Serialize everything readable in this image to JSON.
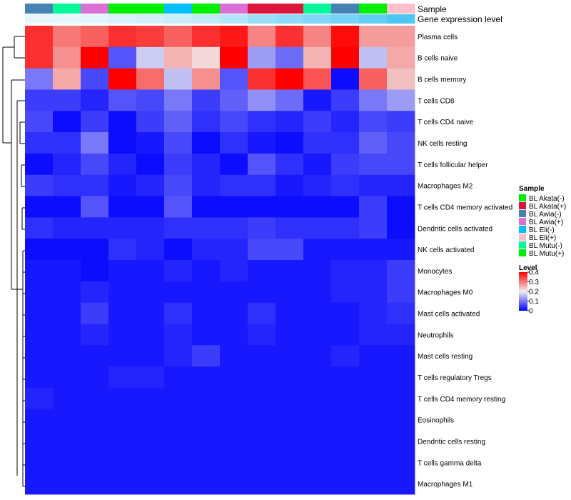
{
  "chart_data": {
    "type": "heatmap",
    "title": "",
    "annotation_labels": {
      "sample": "Sample",
      "expression": "Gene expression level"
    },
    "samples": [
      "BL Awia(-)",
      "BL Mutu(-)",
      "BL Awia(+)",
      "BL Mutu(+)",
      "BL Mutu(+)",
      "BL Eli(-)",
      "BL Mutu(+)",
      "BL Awia(+)",
      "BL Akata(+)",
      "BL Akata(+)",
      "BL Mutu(-)",
      "BL Awia(-)",
      "BL Mutu(+)",
      "BL Eli(+)"
    ],
    "expression_levels": [
      0.05,
      0.06,
      0.07,
      0.1,
      0.12,
      0.15,
      0.18,
      0.22,
      0.3,
      0.34,
      0.38,
      0.42,
      0.48,
      0.55
    ],
    "rows": [
      "Plasma cells",
      "B cells naive",
      "B cells memory",
      "T cells CD8",
      "T cells CD4 naive",
      "NK cells resting",
      "T cells follicular helper",
      "Macrophages M2",
      "T cells CD4 memory activated",
      "Dendritic cells activated",
      "NK cells activated",
      "Monocytes",
      "Macrophages M0",
      "Mast cells activated",
      "Neutrophils",
      "Mast cells resting",
      "T cells regulatory  Tregs",
      "T cells CD4 memory resting",
      "Eosinophils",
      "Dendritic cells resting",
      "T cells gamma delta",
      "Macrophages M1"
    ],
    "values": [
      [
        0.36,
        0.3,
        0.32,
        0.36,
        0.35,
        0.32,
        0.36,
        0.38,
        0.29,
        0.36,
        0.29,
        0.39,
        0.27,
        0.27
      ],
      [
        0.36,
        0.28,
        0.4,
        0.07,
        0.17,
        0.25,
        0.22,
        0.4,
        0.13,
        0.09,
        0.25,
        0.4,
        0.16,
        0.26
      ],
      [
        0.1,
        0.26,
        0.06,
        0.4,
        0.31,
        0.16,
        0.28,
        0.07,
        0.36,
        0.4,
        0.33,
        0.01,
        0.32,
        0.24
      ],
      [
        0.05,
        0.05,
        0.03,
        0.07,
        0.06,
        0.1,
        0.05,
        0.08,
        0.12,
        0.09,
        0.02,
        0.05,
        0.1,
        0.13
      ],
      [
        0.06,
        0.01,
        0.05,
        0.01,
        0.05,
        0.08,
        0.04,
        0.06,
        0.04,
        0.03,
        0.05,
        0.03,
        0.06,
        0.05
      ],
      [
        0.04,
        0.04,
        0.1,
        0.01,
        0.02,
        0.06,
        0.01,
        0.04,
        0.02,
        0.01,
        0.04,
        0.04,
        0.08,
        0.06
      ],
      [
        0.01,
        0.03,
        0.06,
        0.03,
        0.01,
        0.05,
        0.03,
        0.01,
        0.07,
        0.04,
        0.02,
        0.05,
        0.06,
        0.06
      ],
      [
        0.05,
        0.04,
        0.04,
        0.02,
        0.03,
        0.06,
        0.03,
        0.04,
        0.04,
        0.02,
        0.03,
        0.04,
        0.03,
        0.03
      ],
      [
        0.01,
        0.01,
        0.07,
        0.01,
        0.01,
        0.07,
        0.01,
        0.01,
        0.01,
        0.01,
        0.01,
        0.01,
        0.05,
        0.01
      ],
      [
        0.04,
        0.03,
        0.03,
        0.03,
        0.03,
        0.04,
        0.04,
        0.04,
        0.05,
        0.04,
        0.04,
        0.04,
        0.05,
        0.01
      ],
      [
        0.01,
        0.01,
        0.01,
        0.04,
        0.03,
        0.01,
        0.03,
        0.03,
        0.06,
        0.06,
        0.02,
        0.02,
        0.02,
        0.02
      ],
      [
        0.02,
        0.02,
        0.01,
        0.02,
        0.02,
        0.03,
        0.02,
        0.03,
        0.02,
        0.02,
        0.02,
        0.03,
        0.03,
        0.05
      ],
      [
        0.02,
        0.02,
        0.03,
        0.02,
        0.02,
        0.02,
        0.02,
        0.02,
        0.02,
        0.02,
        0.02,
        0.03,
        0.03,
        0.05
      ],
      [
        0.02,
        0.02,
        0.05,
        0.02,
        0.02,
        0.04,
        0.02,
        0.02,
        0.04,
        0.02,
        0.02,
        0.02,
        0.03,
        0.04
      ],
      [
        0.02,
        0.02,
        0.03,
        0.02,
        0.02,
        0.03,
        0.02,
        0.02,
        0.03,
        0.02,
        0.02,
        0.02,
        0.03,
        0.03
      ],
      [
        0.02,
        0.02,
        0.02,
        0.02,
        0.02,
        0.03,
        0.05,
        0.02,
        0.02,
        0.02,
        0.02,
        0.03,
        0.02,
        0.02
      ],
      [
        0.02,
        0.02,
        0.02,
        0.03,
        0.03,
        0.02,
        0.02,
        0.02,
        0.02,
        0.02,
        0.02,
        0.02,
        0.02,
        0.02
      ],
      [
        0.03,
        0.02,
        0.02,
        0.02,
        0.02,
        0.02,
        0.02,
        0.02,
        0.02,
        0.02,
        0.02,
        0.02,
        0.02,
        0.02
      ],
      [
        0.02,
        0.02,
        0.02,
        0.02,
        0.02,
        0.02,
        0.02,
        0.02,
        0.02,
        0.02,
        0.02,
        0.02,
        0.02,
        0.02
      ],
      [
        0.02,
        0.02,
        0.02,
        0.02,
        0.02,
        0.02,
        0.02,
        0.02,
        0.02,
        0.02,
        0.02,
        0.02,
        0.02,
        0.02
      ],
      [
        0.02,
        0.02,
        0.02,
        0.02,
        0.02,
        0.02,
        0.02,
        0.02,
        0.02,
        0.02,
        0.02,
        0.02,
        0.02,
        0.02
      ],
      [
        0.02,
        0.02,
        0.02,
        0.02,
        0.02,
        0.02,
        0.02,
        0.02,
        0.02,
        0.02,
        0.02,
        0.02,
        0.02,
        0.02
      ]
    ],
    "color_scale": {
      "min": 0,
      "max": 0.4,
      "low": "#0000ff",
      "mid": "#f0f0f0",
      "high": "#ff0000",
      "midpoint": 0.2
    },
    "legend": {
      "sample_title": "Sample",
      "sample_entries": [
        {
          "label": "BL Akata(-)",
          "color": "#00ee00"
        },
        {
          "label": "BL Akata(+)",
          "color": "#dc143c"
        },
        {
          "label": "BL Awia(-)",
          "color": "#4682b4"
        },
        {
          "label": "BL Awia(+)",
          "color": "#da70d6"
        },
        {
          "label": "BL Eli(-)",
          "color": "#00bfff"
        },
        {
          "label": "BL Eli(+)",
          "color": "#ffc0cb"
        },
        {
          "label": "BL Mutu(-)",
          "color": "#00fa9a"
        },
        {
          "label": "BL Mutu(+)",
          "color": "#00ee00"
        }
      ],
      "level_title": "Level",
      "level_ticks": [
        "0.4",
        "0.3",
        "0.2",
        "0.1",
        "0"
      ],
      "level_tick_values": [
        0.4,
        0.3,
        0.2,
        0.1,
        0
      ]
    },
    "dendrogram_present": true
  }
}
